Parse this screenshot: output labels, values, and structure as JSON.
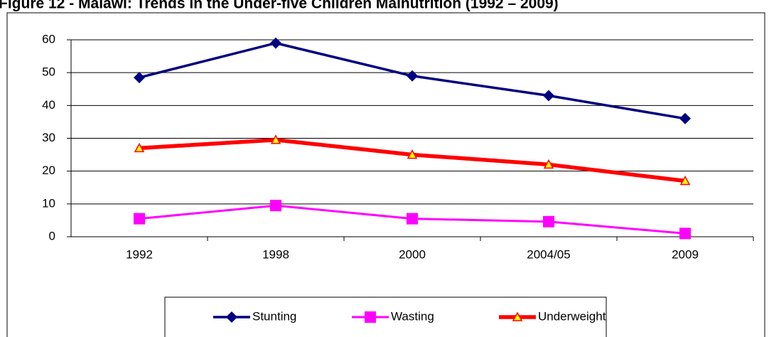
{
  "chart_data": {
    "type": "line",
    "title": "Figure 12 - Malawi: Trends in the Under-five Children Malnutrition (1992 – 2009)",
    "categories": [
      "1992",
      "1998",
      "2000",
      "2004/05",
      "2009"
    ],
    "series": [
      {
        "name": "Stunting",
        "color": "#000080",
        "marker": "diamond",
        "values": [
          48.5,
          59,
          49,
          43,
          36
        ]
      },
      {
        "name": "Wasting",
        "color": "#ff00ff",
        "marker": "square",
        "values": [
          5.5,
          9.5,
          5.5,
          4.6,
          1
        ]
      },
      {
        "name": "Underweight",
        "color": "#ff0000",
        "marker": "triangle",
        "values": [
          27,
          29.5,
          25,
          22,
          17
        ]
      }
    ],
    "ylim": [
      0,
      60
    ],
    "yticks": [
      0,
      10,
      20,
      30,
      40,
      50,
      60
    ],
    "grid": true,
    "legend": "bottom"
  }
}
